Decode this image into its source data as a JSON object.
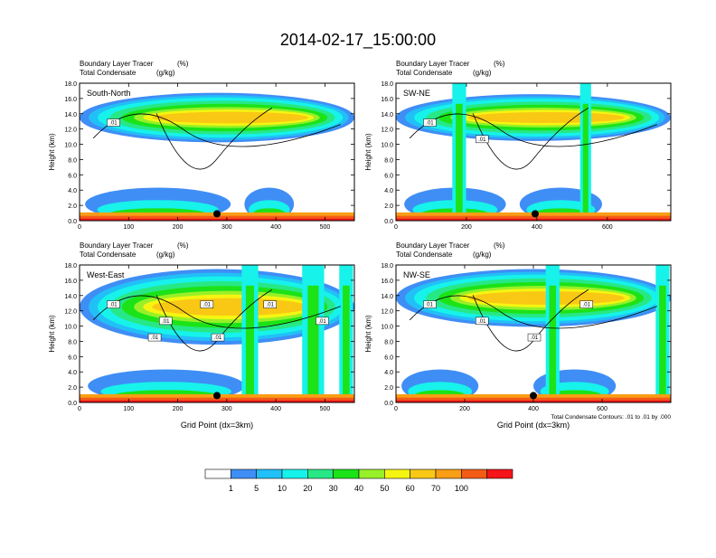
{
  "title": "2014-02-17_15:00:00",
  "colors": {
    "scale": [
      "#ffffff",
      "#3f8ef5",
      "#21c0f7",
      "#17f2ea",
      "#27e886",
      "#1be317",
      "#97f028",
      "#f6f511",
      "#f9c814",
      "#f99e15",
      "#f35b16",
      "#f5141a"
    ],
    "contour": "#000000",
    "marker": "#000000"
  },
  "chart_data": [
    {
      "type": "heatmap",
      "name": "South-North",
      "panel_label": "South-North",
      "title_left_1": "Boundary Layer Tracer",
      "units_1": "(%)",
      "title_left_2": "Total Condensate",
      "units_2": "(g/kg)",
      "ylabel": "Height (km)",
      "xlabel": "",
      "xlim": [
        0,
        560
      ],
      "ylim": [
        0,
        18
      ],
      "xticks": [
        "0",
        "100",
        "200",
        "300",
        "400",
        "500"
      ],
      "yticks": [
        "0.0",
        "2.0",
        "4.0",
        "6.0",
        "8.0",
        "10.0",
        "12.0",
        "14.0",
        "16.0",
        "18.0"
      ],
      "marker_x": 280,
      "contour_labels": [
        ".01"
      ],
      "footnote": ""
    },
    {
      "type": "heatmap",
      "name": "SW-NE",
      "panel_label": "SW-NE",
      "title_left_1": "Boundary Layer Tracer",
      "units_1": "(%)",
      "title_left_2": "Total Condensate",
      "units_2": "(g/kg)",
      "ylabel": "Height (km)",
      "xlabel": "",
      "xlim": [
        0,
        780
      ],
      "ylim": [
        0,
        18
      ],
      "xticks": [
        "0",
        "200",
        "400",
        "600"
      ],
      "yticks": [
        "0.0",
        "2.0",
        "4.0",
        "6.0",
        "8.0",
        "10.0",
        "12.0",
        "14.0",
        "16.0",
        "18.0"
      ],
      "marker_x": 395,
      "contour_labels": [
        ".01",
        ".01"
      ],
      "footnote": ""
    },
    {
      "type": "heatmap",
      "name": "West-East",
      "panel_label": "West-East",
      "title_left_1": "Boundary Layer Tracer",
      "units_1": "(%)",
      "title_left_2": "Total Condensate",
      "units_2": "(g/kg)",
      "ylabel": "Height (km)",
      "xlabel": "Grid Point (dx=3km)",
      "xlim": [
        0,
        560
      ],
      "ylim": [
        0,
        18
      ],
      "xticks": [
        "0",
        "100",
        "200",
        "300",
        "400",
        "500"
      ],
      "yticks": [
        "0.0",
        "2.0",
        "4.0",
        "6.0",
        "8.0",
        "10.0",
        "12.0",
        "14.0",
        "16.0",
        "18.0"
      ],
      "marker_x": 280,
      "contour_labels": [
        ".01",
        ".01",
        ".01",
        ".01",
        ".01",
        ".01",
        ".01"
      ],
      "footnote": ""
    },
    {
      "type": "heatmap",
      "name": "NW-SE",
      "panel_label": "NW-SE",
      "title_left_1": "Boundary Layer Tracer",
      "units_1": "(%)",
      "title_left_2": "Total Condensate",
      "units_2": "(g/kg)",
      "ylabel": "Height (km)",
      "xlabel": "Grid Point (dx=3km)",
      "xlim": [
        0,
        800
      ],
      "ylim": [
        0,
        18
      ],
      "xticks": [
        "0",
        "200",
        "400",
        "600"
      ],
      "yticks": [
        "0.0",
        "2.0",
        "4.0",
        "6.0",
        "8.0",
        "10.0",
        "12.0",
        "14.0",
        "16.0",
        "18.0"
      ],
      "marker_x": 400,
      "contour_labels": [
        "01",
        ".01",
        ".01",
        ".01"
      ],
      "footnote": "Total Condensate Contours: .01 to .01 by .000"
    }
  ],
  "colorbar": {
    "labels": [
      "1",
      "5",
      "10",
      "20",
      "30",
      "40",
      "50",
      "60",
      "70",
      "100"
    ]
  }
}
